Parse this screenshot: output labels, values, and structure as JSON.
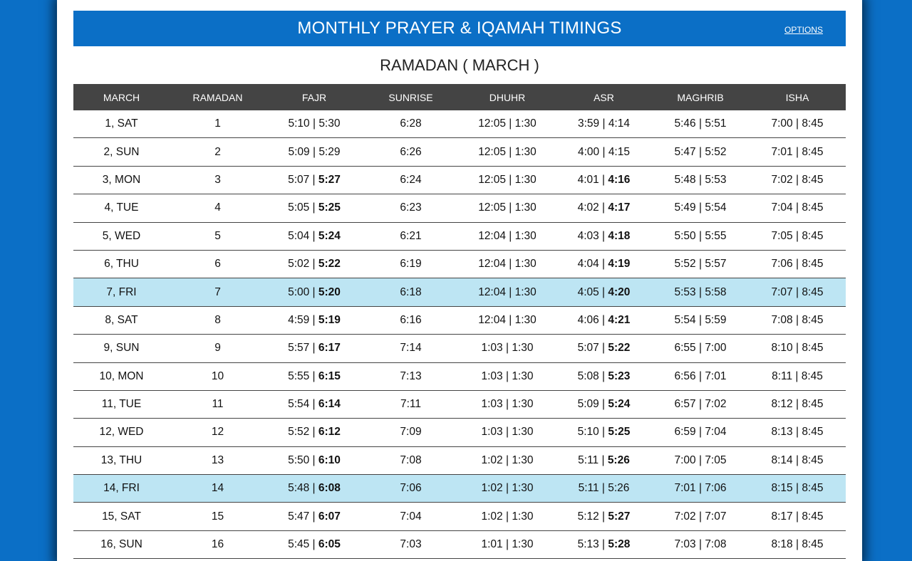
{
  "header": {
    "title": "MONTHLY PRAYER & IQAMAH TIMINGS",
    "options_label": "OPTIONS"
  },
  "subtitle": "RAMADAN ( MARCH )",
  "columns": [
    "MARCH",
    "RAMADAN",
    "FAJR",
    "SUNRISE",
    "DHUHR",
    "ASR",
    "MAGHRIB",
    "ISHA"
  ],
  "rows": [
    {
      "date": "1, SAT",
      "ramadan": "1",
      "fajr": [
        "5:10",
        "5:30"
      ],
      "fajr_bold": false,
      "sunrise": "6:28",
      "dhuhr": [
        "12:05",
        "1:30"
      ],
      "asr": [
        "3:59",
        "4:14"
      ],
      "asr_bold": false,
      "maghrib": [
        "5:46",
        "5:51"
      ],
      "isha": [
        "7:00",
        "8:45"
      ],
      "highlight": false
    },
    {
      "date": "2, SUN",
      "ramadan": "2",
      "fajr": [
        "5:09",
        "5:29"
      ],
      "fajr_bold": false,
      "sunrise": "6:26",
      "dhuhr": [
        "12:05",
        "1:30"
      ],
      "asr": [
        "4:00",
        "4:15"
      ],
      "asr_bold": false,
      "maghrib": [
        "5:47",
        "5:52"
      ],
      "isha": [
        "7:01",
        "8:45"
      ],
      "highlight": false
    },
    {
      "date": "3, MON",
      "ramadan": "3",
      "fajr": [
        "5:07",
        "5:27"
      ],
      "fajr_bold": true,
      "sunrise": "6:24",
      "dhuhr": [
        "12:05",
        "1:30"
      ],
      "asr": [
        "4:01",
        "4:16"
      ],
      "asr_bold": true,
      "maghrib": [
        "5:48",
        "5:53"
      ],
      "isha": [
        "7:02",
        "8:45"
      ],
      "highlight": false
    },
    {
      "date": "4, TUE",
      "ramadan": "4",
      "fajr": [
        "5:05",
        "5:25"
      ],
      "fajr_bold": true,
      "sunrise": "6:23",
      "dhuhr": [
        "12:05",
        "1:30"
      ],
      "asr": [
        "4:02",
        "4:17"
      ],
      "asr_bold": true,
      "maghrib": [
        "5:49",
        "5:54"
      ],
      "isha": [
        "7:04",
        "8:45"
      ],
      "highlight": false
    },
    {
      "date": "5, WED",
      "ramadan": "5",
      "fajr": [
        "5:04",
        "5:24"
      ],
      "fajr_bold": true,
      "sunrise": "6:21",
      "dhuhr": [
        "12:04",
        "1:30"
      ],
      "asr": [
        "4:03",
        "4:18"
      ],
      "asr_bold": true,
      "maghrib": [
        "5:50",
        "5:55"
      ],
      "isha": [
        "7:05",
        "8:45"
      ],
      "highlight": false
    },
    {
      "date": "6, THU",
      "ramadan": "6",
      "fajr": [
        "5:02",
        "5:22"
      ],
      "fajr_bold": true,
      "sunrise": "6:19",
      "dhuhr": [
        "12:04",
        "1:30"
      ],
      "asr": [
        "4:04",
        "4:19"
      ],
      "asr_bold": true,
      "maghrib": [
        "5:52",
        "5:57"
      ],
      "isha": [
        "7:06",
        "8:45"
      ],
      "highlight": false
    },
    {
      "date": "7, FRI",
      "ramadan": "7",
      "fajr": [
        "5:00",
        "5:20"
      ],
      "fajr_bold": true,
      "sunrise": "6:18",
      "dhuhr": [
        "12:04",
        "1:30"
      ],
      "asr": [
        "4:05",
        "4:20"
      ],
      "asr_bold": true,
      "maghrib": [
        "5:53",
        "5:58"
      ],
      "isha": [
        "7:07",
        "8:45"
      ],
      "highlight": true
    },
    {
      "date": "8, SAT",
      "ramadan": "8",
      "fajr": [
        "4:59",
        "5:19"
      ],
      "fajr_bold": true,
      "sunrise": "6:16",
      "dhuhr": [
        "12:04",
        "1:30"
      ],
      "asr": [
        "4:06",
        "4:21"
      ],
      "asr_bold": true,
      "maghrib": [
        "5:54",
        "5:59"
      ],
      "isha": [
        "7:08",
        "8:45"
      ],
      "highlight": false
    },
    {
      "date": "9, SUN",
      "ramadan": "9",
      "fajr": [
        "5:57",
        "6:17"
      ],
      "fajr_bold": true,
      "sunrise": "7:14",
      "dhuhr": [
        "1:03",
        "1:30"
      ],
      "asr": [
        "5:07",
        "5:22"
      ],
      "asr_bold": true,
      "maghrib": [
        "6:55",
        "7:00"
      ],
      "isha": [
        "8:10",
        "8:45"
      ],
      "highlight": false
    },
    {
      "date": "10, MON",
      "ramadan": "10",
      "fajr": [
        "5:55",
        "6:15"
      ],
      "fajr_bold": true,
      "sunrise": "7:13",
      "dhuhr": [
        "1:03",
        "1:30"
      ],
      "asr": [
        "5:08",
        "5:23"
      ],
      "asr_bold": true,
      "maghrib": [
        "6:56",
        "7:01"
      ],
      "isha": [
        "8:11",
        "8:45"
      ],
      "highlight": false
    },
    {
      "date": "11, TUE",
      "ramadan": "11",
      "fajr": [
        "5:54",
        "6:14"
      ],
      "fajr_bold": true,
      "sunrise": "7:11",
      "dhuhr": [
        "1:03",
        "1:30"
      ],
      "asr": [
        "5:09",
        "5:24"
      ],
      "asr_bold": true,
      "maghrib": [
        "6:57",
        "7:02"
      ],
      "isha": [
        "8:12",
        "8:45"
      ],
      "highlight": false
    },
    {
      "date": "12, WED",
      "ramadan": "12",
      "fajr": [
        "5:52",
        "6:12"
      ],
      "fajr_bold": true,
      "sunrise": "7:09",
      "dhuhr": [
        "1:03",
        "1:30"
      ],
      "asr": [
        "5:10",
        "5:25"
      ],
      "asr_bold": true,
      "maghrib": [
        "6:59",
        "7:04"
      ],
      "isha": [
        "8:13",
        "8:45"
      ],
      "highlight": false
    },
    {
      "date": "13, THU",
      "ramadan": "13",
      "fajr": [
        "5:50",
        "6:10"
      ],
      "fajr_bold": true,
      "sunrise": "7:08",
      "dhuhr": [
        "1:02",
        "1:30"
      ],
      "asr": [
        "5:11",
        "5:26"
      ],
      "asr_bold": true,
      "maghrib": [
        "7:00",
        "7:05"
      ],
      "isha": [
        "8:14",
        "8:45"
      ],
      "highlight": false
    },
    {
      "date": "14, FRI",
      "ramadan": "14",
      "fajr": [
        "5:48",
        "6:08"
      ],
      "fajr_bold": true,
      "sunrise": "7:06",
      "dhuhr": [
        "1:02",
        "1:30"
      ],
      "asr": [
        "5:11",
        "5:26"
      ],
      "asr_bold": false,
      "maghrib": [
        "7:01",
        "7:06"
      ],
      "isha": [
        "8:15",
        "8:45"
      ],
      "highlight": true
    },
    {
      "date": "15, SAT",
      "ramadan": "15",
      "fajr": [
        "5:47",
        "6:07"
      ],
      "fajr_bold": true,
      "sunrise": "7:04",
      "dhuhr": [
        "1:02",
        "1:30"
      ],
      "asr": [
        "5:12",
        "5:27"
      ],
      "asr_bold": true,
      "maghrib": [
        "7:02",
        "7:07"
      ],
      "isha": [
        "8:17",
        "8:45"
      ],
      "highlight": false
    },
    {
      "date": "16, SUN",
      "ramadan": "16",
      "fajr": [
        "5:45",
        "6:05"
      ],
      "fajr_bold": true,
      "sunrise": "7:03",
      "dhuhr": [
        "1:01",
        "1:30"
      ],
      "asr": [
        "5:13",
        "5:28"
      ],
      "asr_bold": true,
      "maghrib": [
        "7:03",
        "7:08"
      ],
      "isha": [
        "8:18",
        "8:45"
      ],
      "highlight": false
    }
  ]
}
